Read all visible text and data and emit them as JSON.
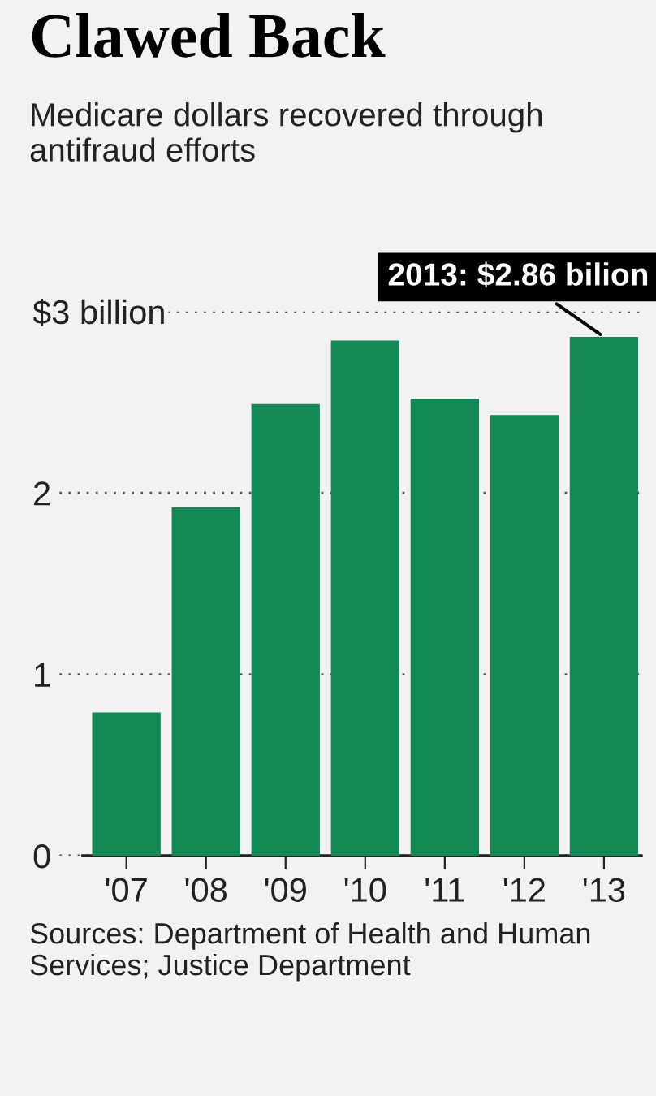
{
  "chart_data": {
    "type": "bar",
    "title": "Clawed Back",
    "subtitle": "Medicare dollars recovered through antifraud efforts",
    "categories": [
      "'07",
      "'08",
      "'09",
      "'10",
      "'11",
      "'12",
      "'13"
    ],
    "values": [
      0.79,
      1.92,
      2.49,
      2.84,
      2.52,
      2.43,
      2.86
    ],
    "color": "#138a55",
    "ylim": [
      0,
      3
    ],
    "yticks": [
      0,
      1,
      2,
      {
        "value": 3,
        "label": "$3 billion"
      }
    ],
    "grid": "y",
    "annotations": [
      {
        "text": "2013: $2.86 bilion",
        "x": "'13",
        "y": 2.86
      },
      "Sources: Department of Health and Human Services; Justice Department"
    ]
  }
}
